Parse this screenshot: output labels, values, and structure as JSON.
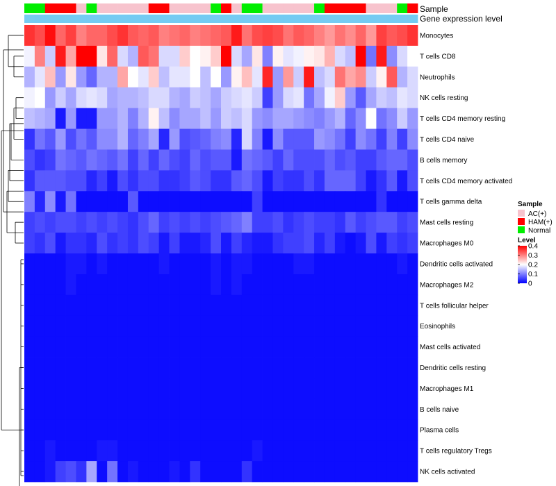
{
  "chart_data": {
    "type": "heatmap",
    "annotations": [
      {
        "name": "Sample",
        "type": "categorical"
      },
      {
        "name": "Gene expression level",
        "type": "continuous"
      }
    ],
    "legend": {
      "sample_title": "Sample",
      "sample_items": [
        {
          "label": "AC(+)",
          "color": "#f7c3cd"
        },
        {
          "label": "HAM(+)",
          "color": "#ff0000"
        },
        {
          "label": "Normal",
          "color": "#00ee00"
        }
      ],
      "level_title": "Level",
      "level_ticks": [
        "0.4",
        "0.3",
        "0.2",
        "0.1",
        "0"
      ],
      "level_values": [
        0.4,
        0.3,
        0.2,
        0.1,
        0
      ]
    },
    "color_scale": {
      "low": "#0000ff",
      "mid": "#ffffff",
      "high": "#ff0000",
      "min": 0,
      "mid_value": 0.2,
      "max": 0.4
    },
    "sample_groups": [
      "N",
      "N",
      "H",
      "H",
      "H",
      "A",
      "N",
      "A",
      "A",
      "A",
      "A",
      "A",
      "H",
      "H",
      "A",
      "A",
      "A",
      "A",
      "N",
      "H",
      "A",
      "N",
      "N",
      "A",
      "A",
      "A",
      "A",
      "A",
      "N",
      "H",
      "H",
      "H",
      "H",
      "A",
      "A",
      "A",
      "N",
      "H"
    ],
    "gene_level": [
      0.78,
      0.79,
      0.8,
      0.8,
      0.8,
      0.79,
      0.8,
      0.8,
      0.8,
      0.79,
      0.8,
      0.8,
      0.8,
      0.8,
      0.79,
      0.8,
      0.8,
      0.8,
      0.79,
      0.8,
      0.8,
      0.8,
      0.79,
      0.8,
      0.8,
      0.8,
      0.8,
      0.8,
      0.8,
      0.79,
      0.8,
      0.79,
      0.8,
      0.8,
      0.79,
      0.8,
      0.8,
      0.8
    ],
    "rows": [
      {
        "label": "Monocytes",
        "values": [
          0.36,
          0.34,
          0.39,
          0.32,
          0.35,
          0.3,
          0.32,
          0.32,
          0.34,
          0.36,
          0.33,
          0.32,
          0.33,
          0.3,
          0.31,
          0.32,
          0.3,
          0.31,
          0.32,
          0.33,
          0.38,
          0.31,
          0.34,
          0.35,
          0.34,
          0.31,
          0.33,
          0.32,
          0.3,
          0.28,
          0.31,
          0.29,
          0.32,
          0.28,
          0.35,
          0.33,
          0.34,
          0.36
        ]
      },
      {
        "label": "T cells CD8",
        "values": [
          0.19,
          0.3,
          0.16,
          0.38,
          0.27,
          0.4,
          0.4,
          0.22,
          0.32,
          0.17,
          0.14,
          0.33,
          0.31,
          0.17,
          0.17,
          0.24,
          0.2,
          0.21,
          0.24,
          0.4,
          0.17,
          0.13,
          0.22,
          0.1,
          0.21,
          0.18,
          0.19,
          0.21,
          0.22,
          0.26,
          0.17,
          0.15,
          0.4,
          0.09,
          0.38,
          0.11,
          0.17,
          0.2
        ]
      },
      {
        "label": "Neutrophils",
        "values": [
          0.14,
          0.18,
          0.25,
          0.12,
          0.22,
          0.12,
          0.08,
          0.14,
          0.14,
          0.27,
          0.2,
          0.18,
          0.24,
          0.15,
          0.18,
          0.18,
          0.2,
          0.15,
          0.2,
          0.12,
          0.21,
          0.25,
          0.18,
          0.37,
          0.12,
          0.28,
          0.16,
          0.38,
          0.15,
          0.17,
          0.31,
          0.27,
          0.29,
          0.16,
          0.21,
          0.33,
          0.14,
          0.17
        ]
      },
      {
        "label": "NK cells resting",
        "values": [
          0.19,
          0.2,
          0.12,
          0.16,
          0.13,
          0.17,
          0.18,
          0.17,
          0.13,
          0.14,
          0.14,
          0.15,
          0.17,
          0.17,
          0.14,
          0.13,
          0.16,
          0.15,
          0.13,
          0.16,
          0.17,
          0.18,
          0.16,
          0.05,
          0.12,
          0.17,
          0.18,
          0.09,
          0.13,
          0.19,
          0.24,
          0.12,
          0.07,
          0.13,
          0.16,
          0.15,
          0.18,
          0.17
        ]
      },
      {
        "label": "T cells CD4 memory resting",
        "values": [
          0.15,
          0.14,
          0.13,
          0.02,
          0.12,
          0.02,
          0.02,
          0.12,
          0.12,
          0.14,
          0.1,
          0.14,
          0.21,
          0.15,
          0.11,
          0.13,
          0.13,
          0.15,
          0.12,
          0.16,
          0.15,
          0.17,
          0.12,
          0.11,
          0.13,
          0.13,
          0.12,
          0.11,
          0.1,
          0.12,
          0.14,
          0.08,
          0.11,
          0.2,
          0.09,
          0.11,
          0.16,
          0.12
        ]
      },
      {
        "label": "T cells CD4 naive",
        "values": [
          0.04,
          0.09,
          0.07,
          0.12,
          0.06,
          0.09,
          0.07,
          0.11,
          0.11,
          0.14,
          0.08,
          0.1,
          0.13,
          0.03,
          0.12,
          0.06,
          0.07,
          0.08,
          0.1,
          0.11,
          0.03,
          0.17,
          0.1,
          0.02,
          0.11,
          0.07,
          0.07,
          0.07,
          0.12,
          0.11,
          0.09,
          0.05,
          0.11,
          0.09,
          0.05,
          0.1,
          0.05,
          0.11
        ]
      },
      {
        "label": "B cells memory",
        "values": [
          0.06,
          0.04,
          0.05,
          0.09,
          0.08,
          0.07,
          0.09,
          0.08,
          0.07,
          0.09,
          0.05,
          0.08,
          0.05,
          0.08,
          0.06,
          0.05,
          0.08,
          0.06,
          0.07,
          0.07,
          0.02,
          0.09,
          0.08,
          0.07,
          0.05,
          0.08,
          0.06,
          0.06,
          0.06,
          0.08,
          0.06,
          0.07,
          0.05,
          0.05,
          0.07,
          0.08,
          0.08,
          0.06
        ]
      },
      {
        "label": "T cells CD4 memory activated",
        "values": [
          0.04,
          0.07,
          0.07,
          0.07,
          0.06,
          0.06,
          0.03,
          0.05,
          0.02,
          0.06,
          0.04,
          0.06,
          0.06,
          0.04,
          0.04,
          0.05,
          0.07,
          0.06,
          0.04,
          0.04,
          0.07,
          0.08,
          0.06,
          0.02,
          0.05,
          0.04,
          0.04,
          0.06,
          0.04,
          0.08,
          0.08,
          0.08,
          0.05,
          0.02,
          0.04,
          0.07,
          0.02,
          0.06
        ]
      },
      {
        "label": "T cells gamma delta",
        "values": [
          0.1,
          0.03,
          0.11,
          0.02,
          0.09,
          0.01,
          0.01,
          0.01,
          0.01,
          0.01,
          0.07,
          0.01,
          0.01,
          0.01,
          0.01,
          0.01,
          0.01,
          0.01,
          0.01,
          0.01,
          0.01,
          0.01,
          0.05,
          0.01,
          0.01,
          0.01,
          0.01,
          0.01,
          0.01,
          0.01,
          0.01,
          0.01,
          0.01,
          0.01,
          0.04,
          0.01,
          0.01,
          0.01
        ]
      },
      {
        "label": "Mast cells resting",
        "values": [
          0.05,
          0.06,
          0.05,
          0.06,
          0.06,
          0.05,
          0.06,
          0.05,
          0.06,
          0.05,
          0.04,
          0.06,
          0.08,
          0.05,
          0.06,
          0.05,
          0.06,
          0.05,
          0.06,
          0.07,
          0.08,
          0.1,
          0.05,
          0.05,
          0.06,
          0.04,
          0.05,
          0.06,
          0.05,
          0.05,
          0.04,
          0.07,
          0.05,
          0.06,
          0.07,
          0.07,
          0.05,
          0.06
        ]
      },
      {
        "label": "Macrophages M0",
        "values": [
          0.05,
          0.04,
          0.06,
          0.02,
          0.04,
          0.04,
          0.03,
          0.06,
          0.04,
          0.05,
          0.04,
          0.06,
          0.05,
          0.02,
          0.05,
          0.02,
          0.02,
          0.03,
          0.06,
          0.02,
          0.05,
          0.03,
          0.02,
          0.02,
          0.04,
          0.05,
          0.05,
          0.06,
          0.03,
          0.05,
          0.02,
          0.01,
          0.02,
          0.06,
          0.02,
          0.05,
          0.04,
          0.05
        ]
      },
      {
        "label": "Dendritic cells activated",
        "values": [
          0.01,
          0.01,
          0.01,
          0.01,
          0.02,
          0.02,
          0.01,
          0.02,
          0.01,
          0.01,
          0.01,
          0.01,
          0.01,
          0.02,
          0.01,
          0.01,
          0.01,
          0.01,
          0.02,
          0.01,
          0.02,
          0.02,
          0.01,
          0.01,
          0.01,
          0.01,
          0.02,
          0.02,
          0.01,
          0.01,
          0.01,
          0.01,
          0.01,
          0.01,
          0.01,
          0.01,
          0.02,
          0.01
        ]
      },
      {
        "label": "Macrophages M2",
        "values": [
          0.01,
          0.01,
          0.01,
          0.01,
          0.02,
          0.01,
          0.01,
          0.01,
          0.01,
          0.01,
          0.01,
          0.01,
          0.01,
          0.01,
          0.01,
          0.01,
          0.01,
          0.01,
          0.02,
          0.01,
          0.02,
          0.01,
          0.01,
          0.01,
          0.01,
          0.01,
          0.01,
          0.01,
          0.01,
          0.01,
          0.01,
          0.01,
          0.01,
          0.01,
          0.01,
          0.01,
          0.01,
          0.01
        ]
      },
      {
        "label": "T cells follicular helper",
        "values": [
          0.01,
          0.01,
          0.01,
          0.01,
          0.01,
          0.01,
          0.01,
          0.01,
          0.01,
          0.01,
          0.01,
          0.01,
          0.01,
          0.01,
          0.01,
          0.01,
          0.01,
          0.01,
          0.01,
          0.01,
          0.01,
          0.01,
          0.01,
          0.01,
          0.01,
          0.01,
          0.01,
          0.01,
          0.01,
          0.01,
          0.01,
          0.01,
          0.01,
          0.01,
          0.01,
          0.01,
          0.01,
          0.01
        ]
      },
      {
        "label": "Eosinophils",
        "values": [
          0.01,
          0.01,
          0.01,
          0.01,
          0.01,
          0.01,
          0.01,
          0.01,
          0.01,
          0.01,
          0.01,
          0.01,
          0.01,
          0.01,
          0.01,
          0.01,
          0.01,
          0.01,
          0.01,
          0.01,
          0.01,
          0.01,
          0.01,
          0.01,
          0.01,
          0.01,
          0.01,
          0.01,
          0.01,
          0.01,
          0.01,
          0.01,
          0.01,
          0.01,
          0.01,
          0.01,
          0.01,
          0.01
        ]
      },
      {
        "label": "Mast cells activated",
        "values": [
          0.01,
          0.01,
          0.01,
          0.01,
          0.01,
          0.01,
          0.01,
          0.01,
          0.01,
          0.01,
          0.01,
          0.01,
          0.01,
          0.01,
          0.01,
          0.01,
          0.01,
          0.01,
          0.01,
          0.01,
          0.01,
          0.01,
          0.01,
          0.01,
          0.01,
          0.01,
          0.01,
          0.01,
          0.01,
          0.01,
          0.01,
          0.01,
          0.01,
          0.01,
          0.01,
          0.01,
          0.01,
          0.01
        ]
      },
      {
        "label": "Dendritic cells resting",
        "values": [
          0.01,
          0.01,
          0.01,
          0.01,
          0.01,
          0.01,
          0.01,
          0.01,
          0.01,
          0.01,
          0.01,
          0.01,
          0.01,
          0.01,
          0.01,
          0.01,
          0.01,
          0.01,
          0.01,
          0.01,
          0.01,
          0.01,
          0.01,
          0.01,
          0.01,
          0.01,
          0.01,
          0.01,
          0.01,
          0.01,
          0.01,
          0.01,
          0.01,
          0.01,
          0.01,
          0.01,
          0.01,
          0.01
        ]
      },
      {
        "label": "Macrophages M1",
        "values": [
          0.01,
          0.01,
          0.01,
          0.01,
          0.01,
          0.01,
          0.01,
          0.01,
          0.01,
          0.01,
          0.01,
          0.01,
          0.01,
          0.01,
          0.01,
          0.01,
          0.01,
          0.01,
          0.01,
          0.01,
          0.01,
          0.01,
          0.01,
          0.01,
          0.01,
          0.01,
          0.01,
          0.01,
          0.01,
          0.01,
          0.01,
          0.01,
          0.01,
          0.01,
          0.01,
          0.01,
          0.01,
          0.01
        ]
      },
      {
        "label": "B cells naive",
        "values": [
          0.01,
          0.01,
          0.01,
          0.01,
          0.01,
          0.01,
          0.01,
          0.01,
          0.01,
          0.01,
          0.01,
          0.01,
          0.01,
          0.01,
          0.01,
          0.01,
          0.01,
          0.01,
          0.01,
          0.01,
          0.01,
          0.01,
          0.01,
          0.01,
          0.01,
          0.01,
          0.01,
          0.01,
          0.01,
          0.01,
          0.01,
          0.01,
          0.01,
          0.01,
          0.01,
          0.01,
          0.01,
          0.01
        ]
      },
      {
        "label": "Plasma cells",
        "values": [
          0.01,
          0.01,
          0.01,
          0.01,
          0.01,
          0.01,
          0.01,
          0.01,
          0.01,
          0.01,
          0.01,
          0.01,
          0.01,
          0.01,
          0.01,
          0.01,
          0.01,
          0.01,
          0.01,
          0.01,
          0.01,
          0.01,
          0.01,
          0.01,
          0.01,
          0.01,
          0.01,
          0.01,
          0.01,
          0.01,
          0.01,
          0.01,
          0.01,
          0.01,
          0.01,
          0.01,
          0.01,
          0.01
        ]
      },
      {
        "label": "T cells regulatory  Tregs",
        "values": [
          0.01,
          0.01,
          0.02,
          0.01,
          0.01,
          0.01,
          0.01,
          0.02,
          0.02,
          0.01,
          0.01,
          0.01,
          0.01,
          0.01,
          0.01,
          0.01,
          0.01,
          0.01,
          0.01,
          0.01,
          0.01,
          0.01,
          0.02,
          0.01,
          0.01,
          0.01,
          0.01,
          0.01,
          0.01,
          0.01,
          0.01,
          0.01,
          0.01,
          0.01,
          0.01,
          0.01,
          0.01,
          0.01
        ]
      },
      {
        "label": "NK cells activated",
        "values": [
          0.01,
          0.01,
          0.02,
          0.05,
          0.06,
          0.04,
          0.13,
          0.01,
          0.09,
          0.01,
          0.02,
          0.01,
          0.01,
          0.01,
          0.02,
          0.01,
          0.04,
          0.01,
          0.01,
          0.01,
          0.01,
          0.04,
          0.01,
          0.01,
          0.01,
          0.01,
          0.01,
          0.01,
          0.01,
          0.01,
          0.01,
          0.01,
          0.01,
          0.01,
          0.01,
          0.01,
          0.01,
          0.01
        ]
      }
    ]
  }
}
